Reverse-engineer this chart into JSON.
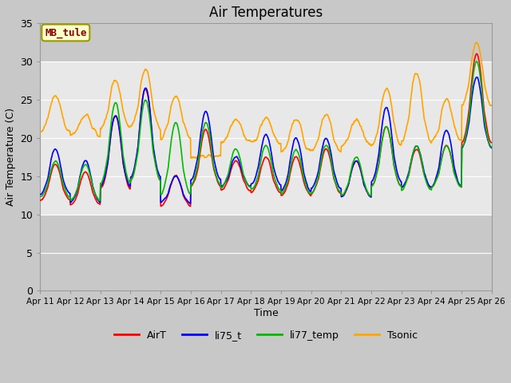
{
  "title": "Air Temperatures",
  "ylabel": "Air Temperature (C)",
  "xlabel": "Time",
  "ylim": [
    0,
    35
  ],
  "yticks": [
    0,
    5,
    10,
    15,
    20,
    25,
    30,
    35
  ],
  "date_labels": [
    "Apr 11",
    "Apr 12",
    "Apr 13",
    "Apr 14",
    "Apr 15",
    "Apr 16",
    "Apr 17",
    "Apr 18",
    "Apr 19",
    "Apr 20",
    "Apr 21",
    "Apr 22",
    "Apr 23",
    "Apr 24",
    "Apr 25",
    "Apr 26"
  ],
  "annotation_text": "MB_tule",
  "annotation_color": "#8B0000",
  "annotation_bg": "#FFFFCC",
  "annotation_border": "#999900",
  "series_colors": {
    "AirT": "#FF0000",
    "li75_t": "#0000FF",
    "li77_temp": "#00BB00",
    "Tsonic": "#FFA500"
  },
  "shaded_band": [
    10,
    30
  ],
  "shaded_color": "#E8E8E8",
  "bg_color": "#C8C8C8",
  "plot_bg": "#C8C8C8",
  "grid_color": "#FFFFFF",
  "line_width": 1.2,
  "airt_night": [
    10.5,
    10.0,
    10.5,
    11.0,
    10.0,
    11.5,
    12.0,
    11.5,
    11.0,
    11.0,
    11.0,
    11.5,
    12.0,
    12.0,
    16.0
  ],
  "airt_day": [
    16.5,
    15.5,
    23.0,
    26.5,
    15.0,
    21.0,
    17.0,
    17.5,
    17.5,
    18.5,
    17.0,
    21.5,
    18.5,
    19.0,
    31.0
  ],
  "li75_night": [
    11.0,
    10.0,
    11.0,
    11.5,
    10.5,
    12.0,
    12.5,
    12.0,
    11.0,
    11.5,
    11.0,
    11.5,
    12.0,
    11.5,
    16.0
  ],
  "li75_day": [
    18.5,
    17.0,
    23.0,
    26.5,
    15.0,
    23.5,
    17.5,
    20.5,
    20.0,
    20.0,
    17.0,
    24.0,
    19.0,
    21.0,
    28.0
  ],
  "li77_night": [
    11.0,
    10.5,
    11.0,
    11.5,
    10.0,
    11.5,
    12.0,
    11.5,
    11.0,
    11.0,
    11.0,
    11.5,
    11.5,
    12.0,
    15.5
  ],
  "li77_day": [
    17.0,
    16.5,
    24.5,
    25.0,
    22.0,
    22.0,
    18.5,
    19.0,
    18.5,
    19.0,
    17.5,
    21.5,
    19.0,
    19.0,
    30.0
  ],
  "tson_night": [
    19.5,
    19.5,
    19.5,
    19.0,
    18.5,
    17.5,
    18.5,
    18.5,
    17.0,
    17.0,
    18.0,
    17.0,
    17.0,
    18.0,
    22.0
  ],
  "tson_day": [
    25.5,
    23.0,
    27.5,
    29.0,
    25.5,
    17.5,
    22.5,
    22.5,
    22.5,
    23.0,
    22.5,
    26.5,
    28.5,
    25.0,
    32.5
  ]
}
